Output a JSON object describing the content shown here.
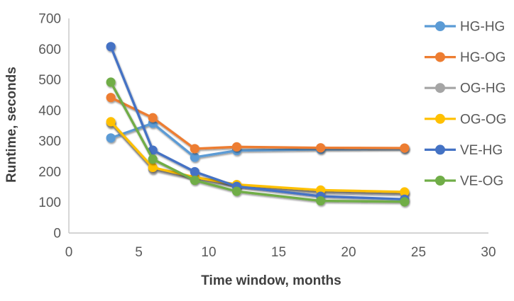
{
  "chart_data": {
    "type": "line",
    "title": "",
    "xlabel": "Time window, months",
    "ylabel": "Runtime, seconds",
    "x": [
      3,
      6,
      9,
      12,
      18,
      24
    ],
    "xlim": [
      0,
      30
    ],
    "ylim": [
      0,
      700
    ],
    "x_ticks": [
      0,
      5,
      10,
      15,
      20,
      25,
      30
    ],
    "y_ticks": [
      0,
      100,
      200,
      300,
      400,
      500,
      600,
      700
    ],
    "grid": false,
    "legend_position": "right",
    "marker": "circle",
    "series": [
      {
        "name": "HG-HG",
        "color": "#5B9BD5",
        "values": [
          310,
          358,
          247,
          269,
          273,
          275
        ]
      },
      {
        "name": "HG-OG",
        "color": "#ED7D31",
        "values": [
          442,
          376,
          275,
          281,
          278,
          277
        ]
      },
      {
        "name": "OG-HG",
        "color": "#A5A5A5",
        "values": [
          358,
          208,
          178,
          153,
          133,
          128
        ]
      },
      {
        "name": "OG-OG",
        "color": "#FFC000",
        "values": [
          363,
          214,
          182,
          158,
          140,
          134
        ]
      },
      {
        "name": "VE-HG",
        "color": "#4472C4",
        "values": [
          608,
          270,
          200,
          152,
          120,
          110
        ]
      },
      {
        "name": "VE-OG",
        "color": "#70AD47",
        "values": [
          492,
          241,
          172,
          136,
          105,
          102
        ]
      }
    ],
    "axis_color": "#C6C6C6",
    "tick_text_color": "#595959",
    "legend_text_color": "#595959"
  }
}
